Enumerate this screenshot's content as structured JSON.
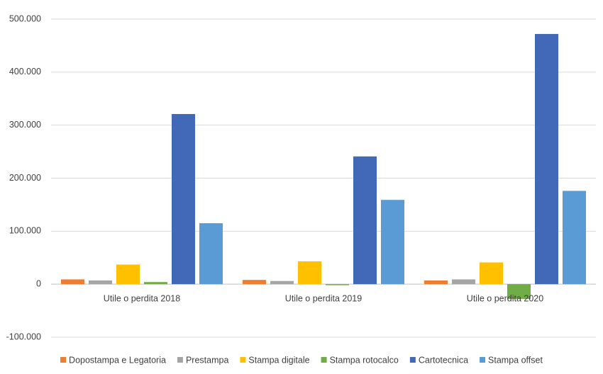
{
  "chart_data": {
    "type": "bar",
    "categories": [
      "Utile o perdita 2018",
      "Utile o perdita 2019",
      "Utile o perdita 2020"
    ],
    "series": [
      {
        "name": "Dopostampa e Legatoria",
        "color": "#ed7d31",
        "values": [
          9000,
          8000,
          7000
        ]
      },
      {
        "name": "Prestampa",
        "color": "#a5a5a5",
        "values": [
          7000,
          6000,
          9000
        ]
      },
      {
        "name": "Stampa digitale",
        "color": "#ffc000",
        "values": [
          37000,
          43000,
          41000
        ]
      },
      {
        "name": "Stampa rotocalco",
        "color": "#70ad47",
        "values": [
          4000,
          -2000,
          -28000
        ]
      },
      {
        "name": "Cartotecnica",
        "color": "#4169b8",
        "values": [
          321000,
          241000,
          472000
        ]
      },
      {
        "name": "Stampa offset",
        "color": "#5b9bd5",
        "values": [
          115000,
          159000,
          176000
        ]
      }
    ],
    "ylim": [
      -100000,
      500000
    ],
    "yticks": [
      {
        "value": -100000,
        "label": "-100.000"
      },
      {
        "value": 0,
        "label": "0"
      },
      {
        "value": 100000,
        "label": "100.000"
      },
      {
        "value": 200000,
        "label": "200.000"
      },
      {
        "value": 300000,
        "label": "300.000"
      },
      {
        "value": 400000,
        "label": "400.000"
      },
      {
        "value": 500000,
        "label": "500.000"
      }
    ],
    "grid": true
  }
}
